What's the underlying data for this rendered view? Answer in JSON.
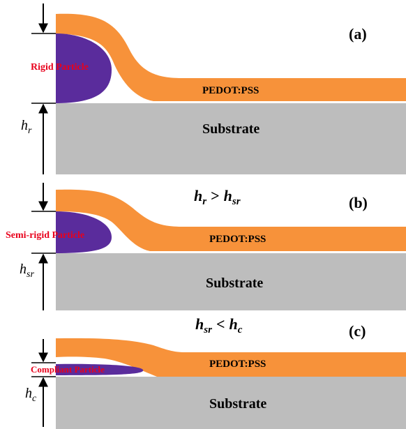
{
  "panels": [
    {
      "label": "(a)",
      "particle": "Rigid Particle",
      "film": "PEDOT:PSS",
      "substrate": "Substrate",
      "height": {
        "base": "h",
        "sub": "r"
      }
    },
    {
      "label": "(b)",
      "particle": "Semi-rigid Particle",
      "film": "PEDOT:PSS",
      "substrate": "Substrate",
      "height": {
        "base": "h",
        "sub": "sr"
      },
      "relation": {
        "left_base": "h",
        "left_sub": "r",
        "operator": ">",
        "right_base": "h",
        "right_sub": "sr"
      }
    },
    {
      "label": "(c)",
      "particle": "Compliant Particle",
      "film": "PEDOT:PSS",
      "substrate": "Substrate",
      "height": {
        "base": "h",
        "sub": "c"
      },
      "relation": {
        "left_base": "h",
        "left_sub": "sr",
        "operator": "<",
        "right_base": "h",
        "right_sub": "c"
      }
    }
  ]
}
